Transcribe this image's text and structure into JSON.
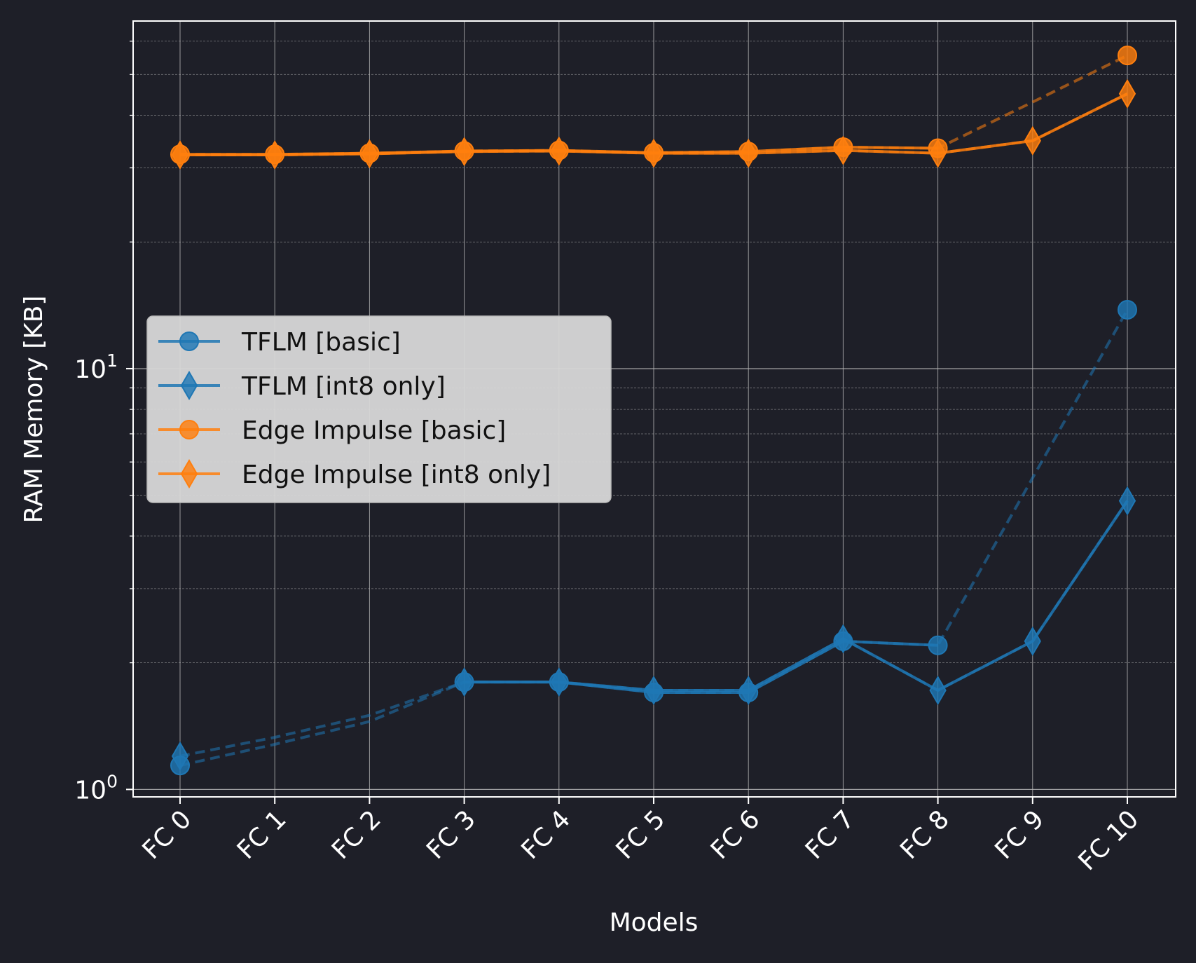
{
  "chart_data": {
    "type": "line",
    "xlabel": "Models",
    "ylabel": "RAM Memory [KB]",
    "y_scale": "log",
    "ylim": [
      0.96,
      67
    ],
    "categories": [
      "FC 0",
      "FC 1",
      "FC 2",
      "FC 3",
      "FC 4",
      "FC 5",
      "FC 6",
      "FC 7",
      "FC 8",
      "FC 9",
      "FC 10"
    ],
    "y_ticks": [
      {
        "base": "10",
        "exp": "0",
        "value": 1
      },
      {
        "base": "10",
        "exp": "1",
        "value": 10
      }
    ],
    "grid": true,
    "legend_position": "center-left",
    "series": [
      {
        "name": "TFLM [basic]",
        "color": "#1f77b4",
        "marker": "circle",
        "values": [
          1.14,
          null,
          null,
          1.8,
          1.8,
          1.7,
          1.7,
          2.25,
          2.2,
          null,
          13.8
        ],
        "interpolated": [
          1.14,
          1.28,
          1.45,
          1.8,
          1.8,
          1.7,
          1.7,
          2.25,
          2.2,
          5.5,
          13.8
        ]
      },
      {
        "name": "TFLM [int8 only]",
        "color": "#1f77b4",
        "marker": "diamond",
        "values": [
          1.2,
          null,
          null,
          1.8,
          1.8,
          1.72,
          1.72,
          2.28,
          1.72,
          2.25,
          4.85
        ],
        "interpolated": [
          1.2,
          1.33,
          1.5,
          1.8,
          1.8,
          1.72,
          1.72,
          2.28,
          1.72,
          2.25,
          4.85
        ]
      },
      {
        "name": "Edge Impulse [basic]",
        "color": "#ff7f0e",
        "marker": "circle",
        "values": [
          32.3,
          32.3,
          32.5,
          32.9,
          33.0,
          32.6,
          32.8,
          33.6,
          33.4,
          null,
          55.5
        ],
        "interpolated": [
          32.3,
          32.3,
          32.5,
          32.9,
          33.0,
          32.6,
          32.8,
          33.6,
          33.4,
          43.0,
          55.5
        ]
      },
      {
        "name": "Edge Impulse [int8 only]",
        "color": "#ff7f0e",
        "marker": "diamond",
        "values": [
          32.2,
          32.2,
          32.4,
          32.8,
          32.9,
          32.5,
          32.5,
          33.0,
          32.5,
          34.8,
          45.0
        ],
        "interpolated": [
          32.2,
          32.2,
          32.4,
          32.8,
          32.9,
          32.5,
          32.5,
          33.0,
          32.5,
          34.8,
          45.0
        ]
      }
    ]
  }
}
